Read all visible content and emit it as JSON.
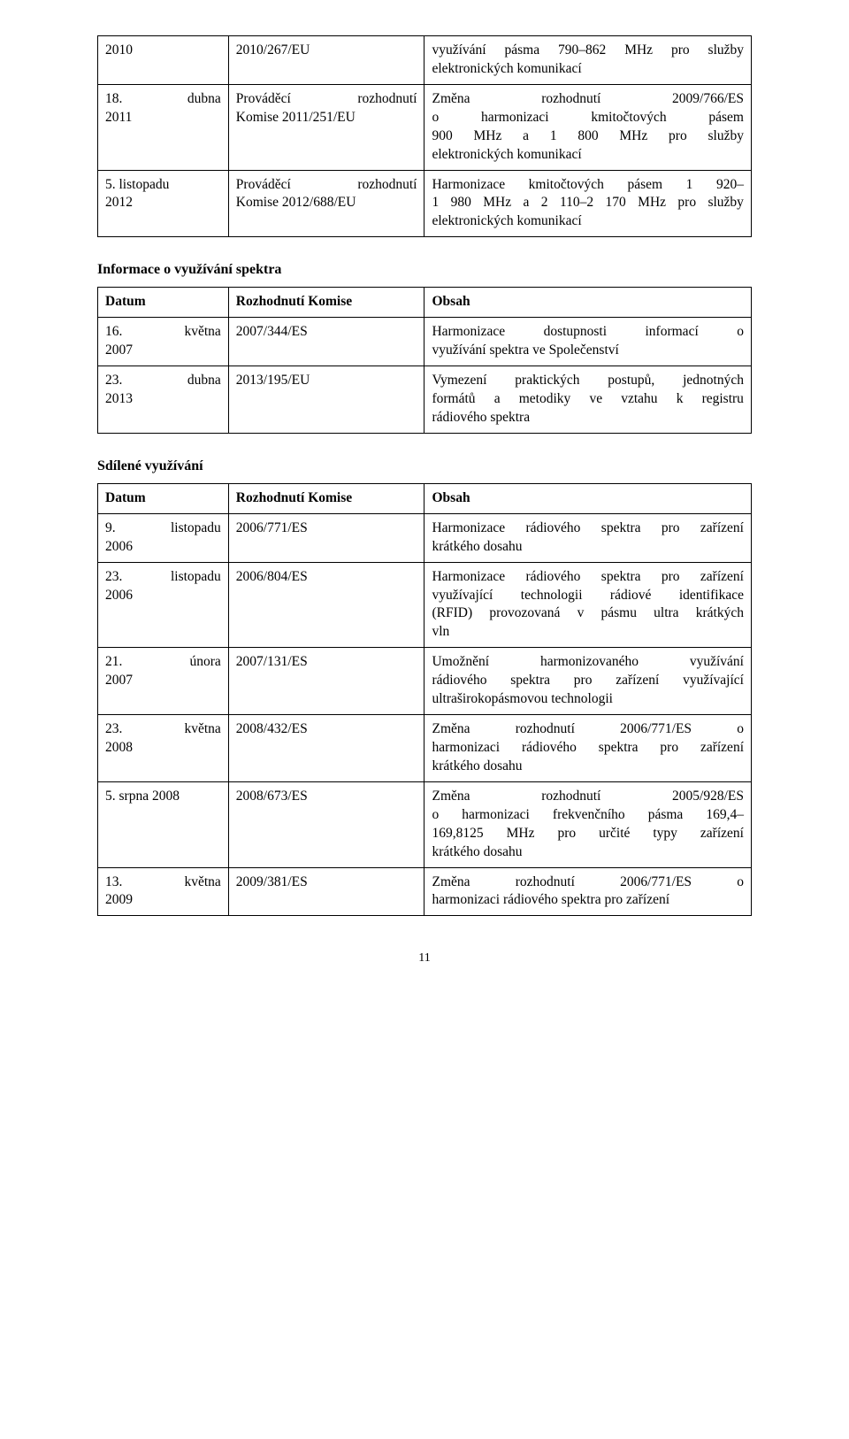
{
  "page_number": "11",
  "tables": {
    "top": {
      "rows": [
        {
          "c1": "2010",
          "c2": "2010/267/EU",
          "c3": "využívání pásma 790–862 MHz pro služby elektronických komunikací"
        },
        {
          "c1": "18. dubna 2011",
          "c2": "Prováděcí rozhodnutí Komise 2011/251/EU",
          "c3": "Změna rozhodnutí 2009/766/ES o harmonizaci kmitočtových pásem 900 MHz a 1 800 MHz pro služby elektronických komunikací"
        },
        {
          "c1": "5. listopadu 2012",
          "c2": "Prováděcí rozhodnutí Komise 2012/688/EU",
          "c3": "Harmonizace kmitočtových pásem 1 920–1 980 MHz a 2 110–2 170 MHz pro služby elektronických komunikací"
        }
      ]
    },
    "spectrum_info": {
      "title": "Informace o využívání spektra",
      "header": {
        "c1": "Datum",
        "c2": "Rozhodnutí Komise",
        "c3": "Obsah"
      },
      "rows": [
        {
          "c1": "16. května 2007",
          "c2": "2007/344/ES",
          "c3": "Harmonizace dostupnosti informací o využívání spektra ve Společenství"
        },
        {
          "c1": "23. dubna 2013",
          "c2": "2013/195/EU",
          "c3": "Vymezení praktických postupů, jednotných formátů a metodiky ve vztahu k registru rádiového spektra"
        }
      ]
    },
    "shared_use": {
      "title": "Sdílené využívání",
      "header": {
        "c1": "Datum",
        "c2": "Rozhodnutí Komise",
        "c3": "Obsah"
      },
      "rows": [
        {
          "c1": "9. listopadu 2006",
          "c2": "2006/771/ES",
          "c3": "Harmonizace rádiového spektra pro zařízení krátkého dosahu"
        },
        {
          "c1": "23. listopadu 2006",
          "c2": "2006/804/ES",
          "c3": "Harmonizace rádiového spektra pro zařízení využívající technologii rádiové identifikace (RFID) provozovaná v pásmu ultra krátkých vln"
        },
        {
          "c1": "21. února 2007",
          "c2": "2007/131/ES",
          "c3": "Umožnění harmonizovaného využívání rádiového spektra pro zařízení využívající ultraširokopásmovou technologii"
        },
        {
          "c1": "23. května 2008",
          "c2": "2008/432/ES",
          "c3": "Změna rozhodnutí 2006/771/ES o harmonizaci rádiového spektra pro zařízení krátkého dosahu"
        },
        {
          "c1": "5. srpna 2008",
          "c2": "2008/673/ES",
          "c3": "Změna rozhodnutí 2005/928/ES o harmonizaci frekvenčního pásma 169,4–169,8125 MHz pro určité typy zařízení krátkého dosahu"
        },
        {
          "c1": "13. května 2009",
          "c2": "2009/381/ES",
          "c3": "Změna rozhodnutí 2006/771/ES o harmonizaci rádiového spektra pro zařízení"
        }
      ]
    }
  },
  "justify_wide_lines": {
    "top.0.c3": [
      0
    ],
    "top.1.c1": [
      0
    ],
    "top.1.c2": [
      0
    ],
    "top.1.c3": [
      0,
      1,
      2
    ],
    "top.2.c2": [
      0
    ],
    "top.2.c3": [
      0,
      1
    ],
    "spectrum_info.0.c1": [
      0
    ],
    "spectrum_info.0.c3": [
      0
    ],
    "spectrum_info.1.c1": [
      0
    ],
    "spectrum_info.1.c3": [
      0,
      1
    ],
    "shared_use.0.c1": [
      0
    ],
    "shared_use.0.c3": [
      0
    ],
    "shared_use.1.c1": [
      0
    ],
    "shared_use.1.c3": [
      0,
      1,
      2
    ],
    "shared_use.2.c1": [
      0
    ],
    "shared_use.2.c3": [
      0,
      1
    ],
    "shared_use.3.c1": [
      0
    ],
    "shared_use.3.c3": [
      0,
      1
    ],
    "shared_use.4.c3": [
      0,
      1,
      2
    ],
    "shared_use.5.c1": [
      0
    ],
    "shared_use.5.c3": [
      0
    ]
  },
  "cell_line_breaks": {
    "top.1.c1": [
      "18. dubna",
      "2011"
    ],
    "top.1.c2": [
      "Prováděcí rozhodnutí",
      "Komise 2011/251/EU"
    ],
    "top.2.c1": [
      "5. listopadu",
      "2012"
    ],
    "top.2.c2": [
      "Prováděcí rozhodnutí",
      "Komise 2012/688/EU"
    ],
    "spectrum_info.0.c1": [
      "16. května",
      "2007"
    ],
    "spectrum_info.1.c1": [
      "23. dubna",
      "2013"
    ],
    "shared_use.0.c1": [
      "9. listopadu",
      "2006"
    ],
    "shared_use.1.c1": [
      "23. listopadu",
      "2006"
    ],
    "shared_use.2.c1": [
      "21. února",
      "2007"
    ],
    "shared_use.3.c1": [
      "23. května",
      "2008"
    ],
    "shared_use.5.c1": [
      "13. května",
      "2009"
    ],
    "top.0.c3": [
      "využívání pásma 790–862 MHz pro služby",
      "elektronických komunikací"
    ],
    "top.1.c3": [
      "Změna rozhodnutí 2009/766/ES",
      "o harmonizaci kmitočtových pásem",
      "900 MHz a 1 800 MHz pro služby",
      "elektronických komunikací"
    ],
    "top.2.c3": [
      "Harmonizace kmitočtových pásem 1 920–",
      "1 980 MHz a 2 110–2 170 MHz pro služby",
      "elektronických komunikací"
    ],
    "spectrum_info.0.c3": [
      "Harmonizace dostupnosti informací o",
      "využívání spektra ve Společenství"
    ],
    "spectrum_info.1.c3": [
      "Vymezení praktických postupů, jednotných",
      "formátů a metodiky ve vztahu k registru",
      "rádiového spektra"
    ],
    "shared_use.0.c3": [
      "Harmonizace rádiového spektra pro zařízení",
      "krátkého dosahu"
    ],
    "shared_use.1.c3": [
      "Harmonizace rádiového spektra pro zařízení",
      "využívající technologii rádiové identifikace",
      "(RFID) provozovaná v pásmu ultra krátkých",
      "vln"
    ],
    "shared_use.2.c3": [
      "Umožnění harmonizovaného využívání",
      "rádiového spektra pro zařízení využívající",
      "ultraširokopásmovou technologii"
    ],
    "shared_use.3.c3": [
      "Změna rozhodnutí 2006/771/ES o",
      "harmonizaci rádiového spektra pro zařízení",
      "krátkého dosahu"
    ],
    "shared_use.4.c3": [
      "Změna rozhodnutí 2005/928/ES",
      "o harmonizaci frekvenčního pásma 169,4–",
      "169,8125 MHz pro určité typy zařízení",
      "krátkého dosahu"
    ],
    "shared_use.5.c3": [
      "Změna rozhodnutí 2006/771/ES o",
      "harmonizaci rádiového spektra pro zařízení"
    ]
  }
}
